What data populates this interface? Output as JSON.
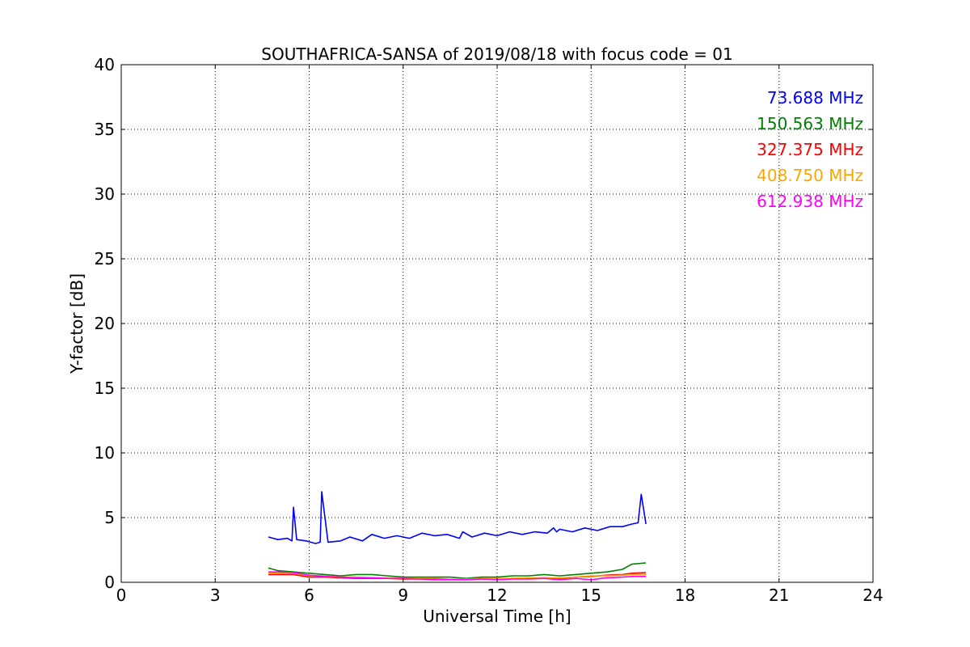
{
  "chart_data": {
    "type": "line",
    "title": "SOUTHAFRICA-SANSA of 2019/08/18 with focus code = 01",
    "xlabel": "Universal Time [h]",
    "ylabel": "Y-factor [dB]",
    "xlim": [
      0,
      24
    ],
    "ylim": [
      0,
      40
    ],
    "xticks": [
      0,
      3,
      6,
      9,
      12,
      15,
      18,
      21,
      24
    ],
    "yticks": [
      0,
      5,
      10,
      15,
      20,
      25,
      30,
      35,
      40
    ],
    "grid": true,
    "legend_placement": "top-right",
    "series": [
      {
        "name": "73.688 MHz",
        "color": "#0000ff",
        "x": [
          4.7,
          5.0,
          5.3,
          5.45,
          5.5,
          5.6,
          5.9,
          6.2,
          6.35,
          6.4,
          6.6,
          7.0,
          7.3,
          7.7,
          8.0,
          8.4,
          8.8,
          9.2,
          9.6,
          10.0,
          10.4,
          10.8,
          10.9,
          11.2,
          11.6,
          12.0,
          12.4,
          12.8,
          13.2,
          13.6,
          13.8,
          13.9,
          14.0,
          14.4,
          14.8,
          15.2,
          15.6,
          16.0,
          16.3,
          16.5,
          16.6,
          16.75
        ],
        "y": [
          3.5,
          3.3,
          3.4,
          3.2,
          5.8,
          3.3,
          3.2,
          3.0,
          3.1,
          7.0,
          3.1,
          3.2,
          3.5,
          3.2,
          3.7,
          3.4,
          3.6,
          3.4,
          3.8,
          3.6,
          3.7,
          3.4,
          3.9,
          3.5,
          3.8,
          3.6,
          3.9,
          3.7,
          3.9,
          3.8,
          4.2,
          3.9,
          4.1,
          3.9,
          4.2,
          4.0,
          4.3,
          4.3,
          4.5,
          4.6,
          6.8,
          4.5
        ]
      },
      {
        "name": "150.563 MHz",
        "color": "#008000",
        "x": [
          4.7,
          5.0,
          5.5,
          6.0,
          6.5,
          7.0,
          7.5,
          8.0,
          8.5,
          9.0,
          9.5,
          10.0,
          10.5,
          11.0,
          11.5,
          12.0,
          12.5,
          13.0,
          13.5,
          14.0,
          14.5,
          15.0,
          15.5,
          16.0,
          16.3,
          16.75
        ],
        "y": [
          1.1,
          0.9,
          0.8,
          0.7,
          0.6,
          0.5,
          0.6,
          0.6,
          0.5,
          0.4,
          0.4,
          0.4,
          0.4,
          0.3,
          0.4,
          0.4,
          0.5,
          0.5,
          0.6,
          0.5,
          0.6,
          0.7,
          0.8,
          1.0,
          1.4,
          1.5
        ]
      },
      {
        "name": "327.375 MHz",
        "color": "#ff0000",
        "x": [
          4.7,
          5.0,
          5.5,
          6.0,
          6.5,
          7.0,
          7.5,
          8.0,
          8.5,
          9.0,
          9.5,
          10.0,
          10.5,
          11.0,
          11.5,
          12.0,
          12.5,
          13.0,
          13.5,
          14.0,
          14.5,
          15.0,
          15.5,
          16.0,
          16.3,
          16.75
        ],
        "y": [
          0.6,
          0.6,
          0.6,
          0.4,
          0.4,
          0.35,
          0.3,
          0.3,
          0.3,
          0.25,
          0.25,
          0.2,
          0.2,
          0.2,
          0.25,
          0.25,
          0.3,
          0.3,
          0.35,
          0.3,
          0.4,
          0.45,
          0.55,
          0.6,
          0.7,
          0.75
        ]
      },
      {
        "name": "408.750 MHz",
        "color": "#ffa500",
        "x": [
          4.7,
          5.0,
          5.5,
          6.0,
          6.5,
          7.0,
          7.5,
          8.0,
          8.5,
          9.0,
          9.5,
          10.0,
          10.5,
          11.0,
          11.5,
          12.0,
          12.5,
          13.0,
          13.5,
          14.0,
          14.5,
          15.0,
          15.5,
          16.0,
          16.3,
          16.75
        ],
        "y": [
          0.7,
          0.7,
          0.7,
          0.5,
          0.5,
          0.4,
          0.4,
          0.35,
          0.35,
          0.3,
          0.3,
          0.3,
          0.25,
          0.25,
          0.3,
          0.3,
          0.3,
          0.35,
          0.35,
          0.35,
          0.4,
          0.5,
          0.5,
          0.55,
          0.6,
          0.6
        ]
      },
      {
        "name": "612.938 MHz",
        "color": "#ff00ff",
        "x": [
          4.7,
          5.0,
          5.5,
          6.0,
          6.5,
          7.0,
          7.5,
          8.0,
          8.5,
          9.0,
          9.5,
          10.0,
          10.5,
          11.0,
          11.5,
          12.0,
          12.5,
          13.0,
          13.5,
          14.0,
          14.5,
          15.0,
          15.5,
          16.0,
          16.3,
          16.75
        ],
        "y": [
          0.8,
          0.8,
          0.75,
          0.55,
          0.45,
          0.4,
          0.35,
          0.35,
          0.3,
          0.3,
          0.25,
          0.25,
          0.2,
          0.2,
          0.25,
          0.2,
          0.25,
          0.25,
          0.3,
          0.2,
          0.3,
          0.2,
          0.35,
          0.4,
          0.45,
          0.45
        ]
      }
    ]
  }
}
